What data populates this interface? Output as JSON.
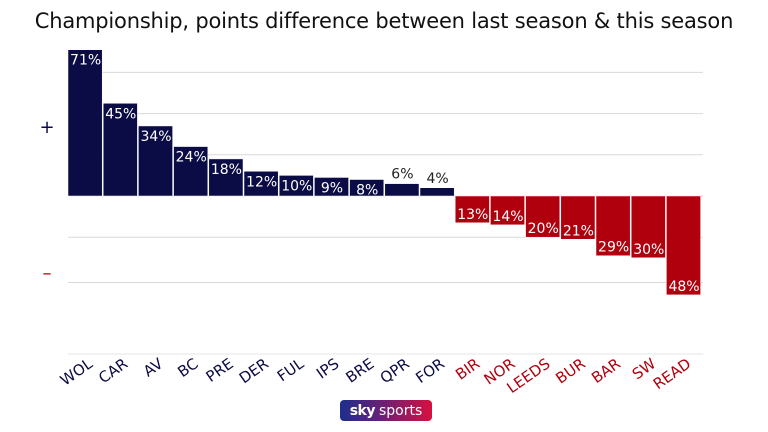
{
  "chart_data": {
    "type": "bar",
    "title": "Championship, points difference between last season & this season",
    "xlabel": "",
    "ylabel": "",
    "ylim": [
      -50,
      75
    ],
    "grid": true,
    "gridlines": [
      -42,
      -20,
      0,
      20,
      40,
      60
    ],
    "categories": [
      "WOL",
      "CAR",
      "AV",
      "BC",
      "PRE",
      "DER",
      "FUL",
      "IPS",
      "BRE",
      "QPR",
      "FOR",
      "BIR",
      "NOR",
      "LEEDS",
      "BUR",
      "BAR",
      "SW",
      "READ"
    ],
    "values": [
      71,
      45,
      34,
      24,
      18,
      12,
      10,
      9,
      8,
      6,
      4,
      -13,
      -14,
      -20,
      -21,
      -29,
      -30,
      -48
    ],
    "data_labels": [
      "71%",
      "45%",
      "34%",
      "24%",
      "18%",
      "12%",
      "10%",
      "9%",
      "8%",
      "6%",
      "4%",
      "13%",
      "14%",
      "20%",
      "21%",
      "29%",
      "30%",
      "48%"
    ],
    "positive_color": "#0b0b45",
    "negative_color": "#b0000e",
    "sign_labels": {
      "plus": "+",
      "minus": "–"
    }
  },
  "branding": {
    "logo_sky": "sky",
    "logo_sports": "sports"
  }
}
